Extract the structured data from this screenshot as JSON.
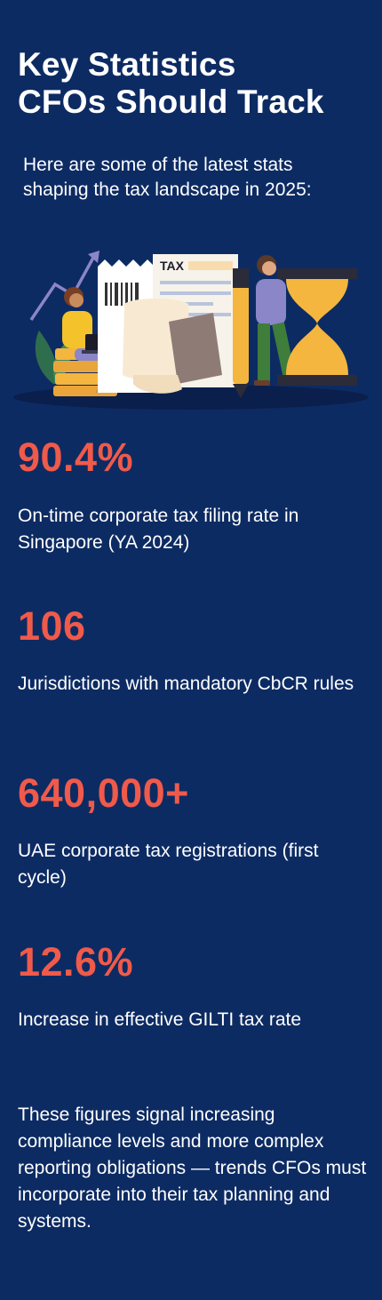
{
  "heading": {
    "title_line1": "Key Statistics",
    "title_line2": "CFOs Should Track",
    "intro": "Here are some of the latest stats shaping the tax landscape in 2025:"
  },
  "illustration": {
    "tax_label": "TAX",
    "icons": [
      "person-with-laptop-icon",
      "trend-arrow-icon",
      "receipt-icon",
      "tax-form-icon",
      "person-with-pen-icon",
      "hourglass-icon",
      "coin-stack-icon",
      "plant-icon"
    ]
  },
  "stats": [
    {
      "value": "90.4%",
      "description": "On-time corporate tax filing rate in Singapore (YA 2024)"
    },
    {
      "value": "106",
      "description": "Jurisdictions with mandatory CbCR rules"
    },
    {
      "value": "640,000+",
      "description": "UAE corporate tax registrations (first cycle)"
    },
    {
      "value": "12.6%",
      "description": "Increase in effective GILTI tax rate"
    }
  ],
  "outro": "These figures signal increasing compliance levels and more complex reporting obligations — trends CFOs must incorporate into their tax planning and systems.",
  "colors": {
    "background": "#0d2b63",
    "accent": "#f05a4a",
    "text": "#ffffff",
    "gold": "#f4b63f",
    "purple": "#8a86c8"
  }
}
